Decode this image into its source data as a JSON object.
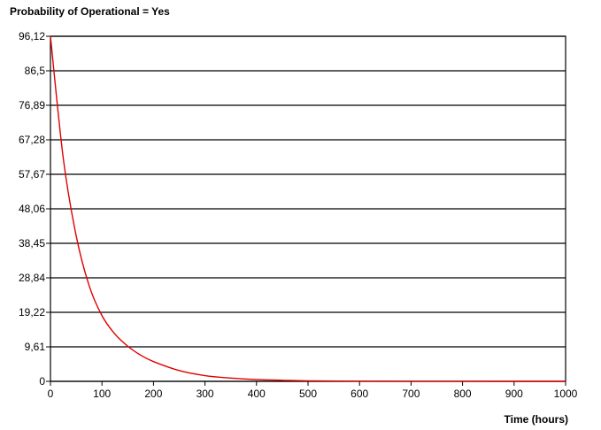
{
  "chart_data": {
    "type": "line",
    "title": "Probability of Operational = Yes",
    "xlabel": "Time (hours)",
    "ylabel": "",
    "xlim": [
      0,
      1000
    ],
    "ylim": [
      0,
      96.12
    ],
    "x_ticks": [
      "0",
      "100",
      "200",
      "300",
      "400",
      "500",
      "600",
      "700",
      "800",
      "900",
      "1000"
    ],
    "y_ticks": [
      "0",
      "9,61",
      "19,22",
      "28,84",
      "38,45",
      "48,06",
      "57,67",
      "67,28",
      "76,89",
      "86,5",
      "96,12"
    ],
    "grid": "horizontal",
    "colors": {
      "line": "#e00000",
      "grid": "#000000",
      "frame": "#000000"
    },
    "series": [
      {
        "x": [
          0,
          25,
          50,
          75,
          100,
          125,
          150,
          175,
          200,
          250,
          300,
          350,
          400,
          450,
          500,
          600,
          700,
          800,
          900,
          1000
        ],
        "values": [
          96.12,
          62.0,
          40.5,
          26.7,
          18.3,
          13.2,
          9.8,
          7.3,
          5.5,
          3.0,
          1.6,
          0.9,
          0.5,
          0.3,
          0.15,
          0.05,
          0.02,
          0.01,
          0.0,
          0.0
        ]
      }
    ]
  }
}
